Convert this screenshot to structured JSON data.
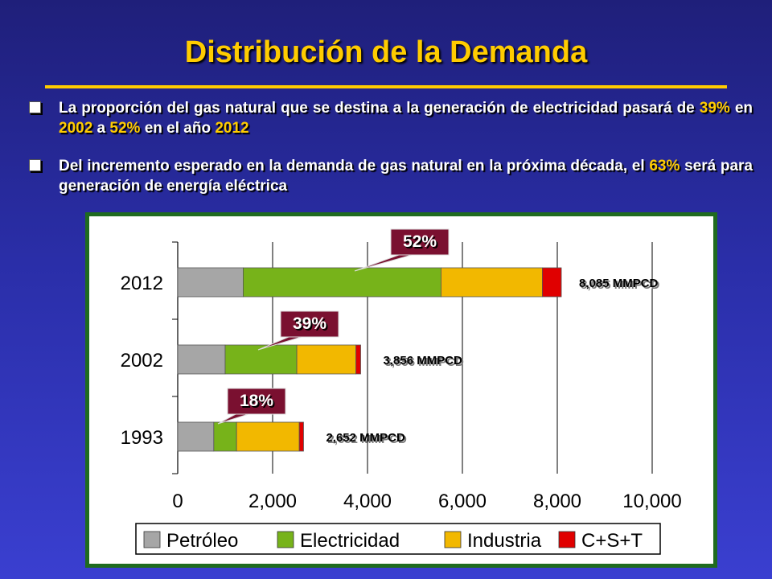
{
  "slide": {
    "title": "Distribución de la Demanda",
    "bullets": [
      {
        "parts": [
          {
            "text": "La proporción del gas natural que se destina a la generación de electricidad pasará de ",
            "hl": false
          },
          {
            "text": "39%",
            "hl": true
          },
          {
            "text": " en ",
            "hl": false
          },
          {
            "text": "2002",
            "hl": true
          },
          {
            "text": " a ",
            "hl": false
          },
          {
            "text": "52%",
            "hl": true
          },
          {
            "text": " en el año ",
            "hl": false
          },
          {
            "text": "2012",
            "hl": true
          }
        ]
      },
      {
        "parts": [
          {
            "text": "Del incremento esperado en la demanda de gas natural en la próxima década, el ",
            "hl": false
          },
          {
            "text": "63%",
            "hl": true
          },
          {
            "text": " será para generación de energía eléctrica",
            "hl": false
          }
        ]
      }
    ]
  },
  "colors": {
    "title": "#ffcc00",
    "highlight": "#ffcc00",
    "frame": "#1f6b1f",
    "callout": "#7a1030"
  },
  "chart_data": {
    "type": "bar",
    "orientation": "horizontal",
    "stacked": true,
    "categories": [
      "2012",
      "2002",
      "1993"
    ],
    "series": [
      {
        "name": "Petróleo",
        "color": "#a6a6a6",
        "values": [
          1380,
          1000,
          760
        ]
      },
      {
        "name": "Electricidad",
        "color": "#77b31a",
        "values": [
          4170,
          1510,
          480
        ]
      },
      {
        "name": "Industria",
        "color": "#f2b800",
        "values": [
          2135,
          1246,
          1322
        ]
      },
      {
        "name": "C+S+T",
        "color": "#e00000",
        "values": [
          400,
          100,
          90
        ]
      }
    ],
    "totals_labels": [
      "8,085 MMPCD",
      "3,856 MMPCD",
      "2,652 MMPCD"
    ],
    "callouts": [
      "52%",
      "39%",
      "18%"
    ],
    "xlim": [
      0,
      10000
    ],
    "xticks": [
      "0",
      "2,000",
      "4,000",
      "6,000",
      "8,000",
      "10,000"
    ],
    "grid": true,
    "legend_position": "bottom"
  }
}
